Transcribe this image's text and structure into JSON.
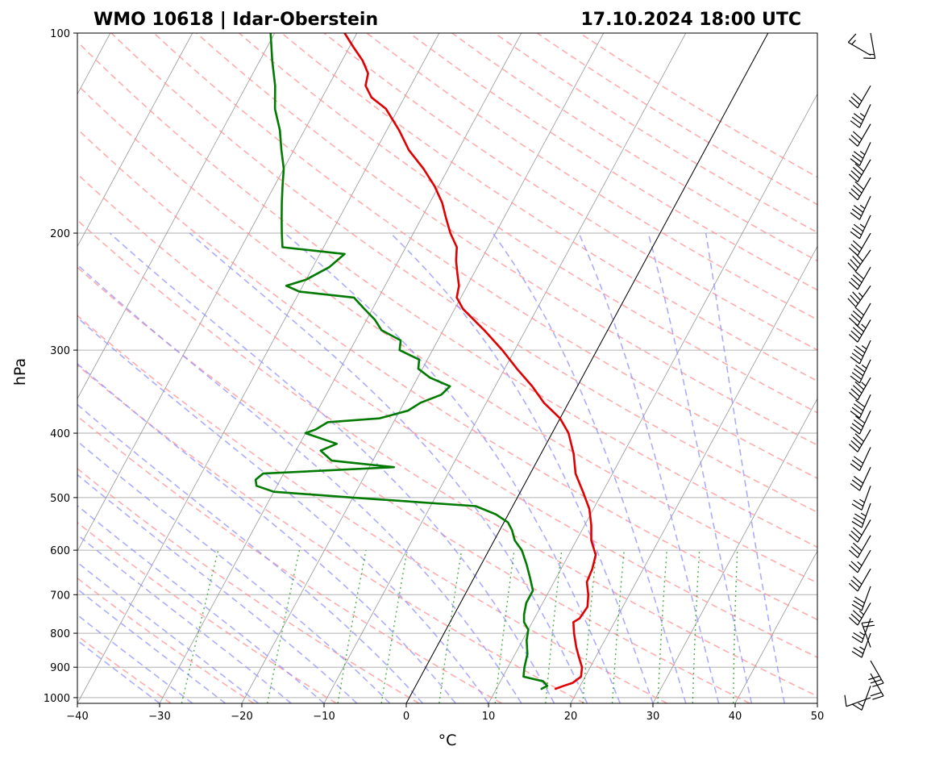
{
  "chart_data": {
    "type": "line",
    "subtype": "skew-t log-p sounding",
    "title_left": "WMO 10618 | Idar-Oberstein",
    "title_right": "17.10.2024 18:00 UTC",
    "xlabel": "°C",
    "ylabel": "hPa",
    "xlim": [
      -40,
      50
    ],
    "ylim": [
      1020,
      100
    ],
    "y_scale": "log",
    "x_ticks": [
      "−40",
      "−30",
      "−20",
      "−10",
      "0",
      "10",
      "20",
      "30",
      "40",
      "50"
    ],
    "y_ticks": [
      "1000",
      "900",
      "800",
      "700",
      "600",
      "500",
      "400",
      "300",
      "200",
      "100"
    ],
    "grid": true,
    "reference_lines": {
      "isotherms": "gray",
      "dry_adiabats": "red dashed",
      "moist_adiabats": "blue dashed",
      "mixing_ratio": "green dotted",
      "zero_isotherm": "black"
    },
    "colors": {
      "temperature": "#e00000",
      "dewpoint": "#007a00",
      "isotherm": "#8c8c8c",
      "dry_adiabat": "#ff9090",
      "moist_adiabat": "#9090ff",
      "mixing_ratio": "#2ca02c",
      "grid": "#b0b0b0"
    },
    "series": [
      {
        "key": "temperature",
        "points": [
          [
            970,
            17.2
          ],
          [
            960,
            18.0
          ],
          [
            950,
            18.9
          ],
          [
            930,
            19.5
          ],
          [
            900,
            19.0
          ],
          [
            870,
            18.0
          ],
          [
            840,
            17.0
          ],
          [
            800,
            15.8
          ],
          [
            770,
            15.0
          ],
          [
            760,
            15.5
          ],
          [
            730,
            15.7
          ],
          [
            700,
            15.0
          ],
          [
            670,
            14.0
          ],
          [
            640,
            13.8
          ],
          [
            610,
            13.3
          ],
          [
            580,
            11.8
          ],
          [
            550,
            10.8
          ],
          [
            520,
            9.5
          ],
          [
            490,
            7.6
          ],
          [
            460,
            5.5
          ],
          [
            430,
            4.0
          ],
          [
            400,
            2.0
          ],
          [
            380,
            0.0
          ],
          [
            360,
            -3.0
          ],
          [
            340,
            -5.5
          ],
          [
            320,
            -8.5
          ],
          [
            300,
            -11.5
          ],
          [
            280,
            -15.0
          ],
          [
            260,
            -19.0
          ],
          [
            250,
            -20.5
          ],
          [
            240,
            -21.0
          ],
          [
            230,
            -22.0
          ],
          [
            220,
            -23.0
          ],
          [
            210,
            -23.8
          ],
          [
            200,
            -25.5
          ],
          [
            190,
            -27.0
          ],
          [
            180,
            -28.5
          ],
          [
            170,
            -30.5
          ],
          [
            160,
            -33.0
          ],
          [
            150,
            -36.0
          ],
          [
            140,
            -38.5
          ],
          [
            130,
            -41.5
          ],
          [
            125,
            -44.0
          ],
          [
            120,
            -45.5
          ],
          [
            115,
            -46.0
          ],
          [
            110,
            -47.5
          ],
          [
            105,
            -49.5
          ],
          [
            100,
            -51.5
          ]
        ]
      },
      {
        "key": "dewpoint",
        "points": [
          [
            970,
            15.5
          ],
          [
            960,
            16.0
          ],
          [
            945,
            15.2
          ],
          [
            930,
            12.5
          ],
          [
            900,
            12.0
          ],
          [
            860,
            11.5
          ],
          [
            820,
            10.5
          ],
          [
            790,
            10.0
          ],
          [
            770,
            9.0
          ],
          [
            750,
            8.5
          ],
          [
            720,
            8.0
          ],
          [
            690,
            8.0
          ],
          [
            660,
            6.8
          ],
          [
            630,
            5.5
          ],
          [
            600,
            4.0
          ],
          [
            580,
            2.5
          ],
          [
            560,
            1.5
          ],
          [
            545,
            0.5
          ],
          [
            530,
            -1.5
          ],
          [
            515,
            -4.5
          ],
          [
            500,
            -20.0
          ],
          [
            490,
            -30.0
          ],
          [
            480,
            -32.5
          ],
          [
            470,
            -33.0
          ],
          [
            460,
            -32.5
          ],
          [
            450,
            -17.0
          ],
          [
            440,
            -25.0
          ],
          [
            425,
            -27.0
          ],
          [
            415,
            -25.5
          ],
          [
            400,
            -30.0
          ],
          [
            395,
            -29.0
          ],
          [
            385,
            -28.0
          ],
          [
            380,
            -22.0
          ],
          [
            370,
            -19.0
          ],
          [
            360,
            -18.0
          ],
          [
            350,
            -16.0
          ],
          [
            340,
            -15.5
          ],
          [
            330,
            -18.5
          ],
          [
            320,
            -20.5
          ],
          [
            310,
            -21.0
          ],
          [
            300,
            -24.0
          ],
          [
            290,
            -24.5
          ],
          [
            280,
            -27.5
          ],
          [
            270,
            -29.0
          ],
          [
            260,
            -31.0
          ],
          [
            250,
            -33.0
          ],
          [
            245,
            -40.0
          ],
          [
            240,
            -42.0
          ],
          [
            235,
            -40.0
          ],
          [
            225,
            -38.0
          ],
          [
            215,
            -37.0
          ],
          [
            210,
            -45.0
          ],
          [
            200,
            -46.0
          ],
          [
            190,
            -47.0
          ],
          [
            180,
            -48.0
          ],
          [
            170,
            -49.0
          ],
          [
            160,
            -50.0
          ],
          [
            150,
            -51.5
          ],
          [
            140,
            -53.0
          ],
          [
            130,
            -55.0
          ],
          [
            120,
            -56.5
          ],
          [
            110,
            -58.5
          ],
          [
            100,
            -60.5
          ]
        ]
      }
    ],
    "wind_barbs": [
      {
        "p": 1000,
        "speed": 10,
        "dir": 250
      },
      {
        "p": 960,
        "speed": 15,
        "dir": 200
      },
      {
        "p": 920,
        "speed": 20,
        "dir": 150
      },
      {
        "p": 880,
        "speed": 30,
        "dir": 150
      },
      {
        "p": 840,
        "speed": 20,
        "dir": 340
      },
      {
        "p": 800,
        "speed": 25,
        "dir": 200
      },
      {
        "p": 760,
        "speed": 25,
        "dir": 200
      },
      {
        "p": 720,
        "speed": 35,
        "dir": 210
      },
      {
        "p": 680,
        "speed": 30,
        "dir": 200
      },
      {
        "p": 640,
        "speed": 30,
        "dir": 210
      },
      {
        "p": 600,
        "speed": 25,
        "dir": 210
      },
      {
        "p": 570,
        "speed": 30,
        "dir": 210
      },
      {
        "p": 540,
        "speed": 30,
        "dir": 210
      },
      {
        "p": 510,
        "speed": 35,
        "dir": 200
      },
      {
        "p": 480,
        "speed": 25,
        "dir": 200
      },
      {
        "p": 450,
        "speed": 30,
        "dir": 205
      },
      {
        "p": 420,
        "speed": 30,
        "dir": 205
      },
      {
        "p": 395,
        "speed": 40,
        "dir": 210
      },
      {
        "p": 370,
        "speed": 40,
        "dir": 205
      },
      {
        "p": 350,
        "speed": 40,
        "dir": 205
      },
      {
        "p": 330,
        "speed": 45,
        "dir": 210
      },
      {
        "p": 310,
        "speed": 45,
        "dir": 205
      },
      {
        "p": 290,
        "speed": 45,
        "dir": 205
      },
      {
        "p": 270,
        "speed": 45,
        "dir": 210
      },
      {
        "p": 255,
        "speed": 40,
        "dir": 210
      },
      {
        "p": 240,
        "speed": 35,
        "dir": 215
      },
      {
        "p": 225,
        "speed": 40,
        "dir": 210
      },
      {
        "p": 212,
        "speed": 40,
        "dir": 215
      },
      {
        "p": 200,
        "speed": 30,
        "dir": 210
      },
      {
        "p": 188,
        "speed": 35,
        "dir": 205
      },
      {
        "p": 176,
        "speed": 35,
        "dir": 205
      },
      {
        "p": 165,
        "speed": 40,
        "dir": 210
      },
      {
        "p": 155,
        "speed": 40,
        "dir": 210
      },
      {
        "p": 146,
        "speed": 35,
        "dir": 205
      },
      {
        "p": 137,
        "speed": 30,
        "dir": 210
      },
      {
        "p": 128,
        "speed": 35,
        "dir": 205
      },
      {
        "p": 120,
        "speed": 30,
        "dir": 210
      },
      {
        "p": 108,
        "speed": 15,
        "dir": 300
      },
      {
        "p": 100,
        "speed": 15,
        "dir": 170
      }
    ]
  }
}
